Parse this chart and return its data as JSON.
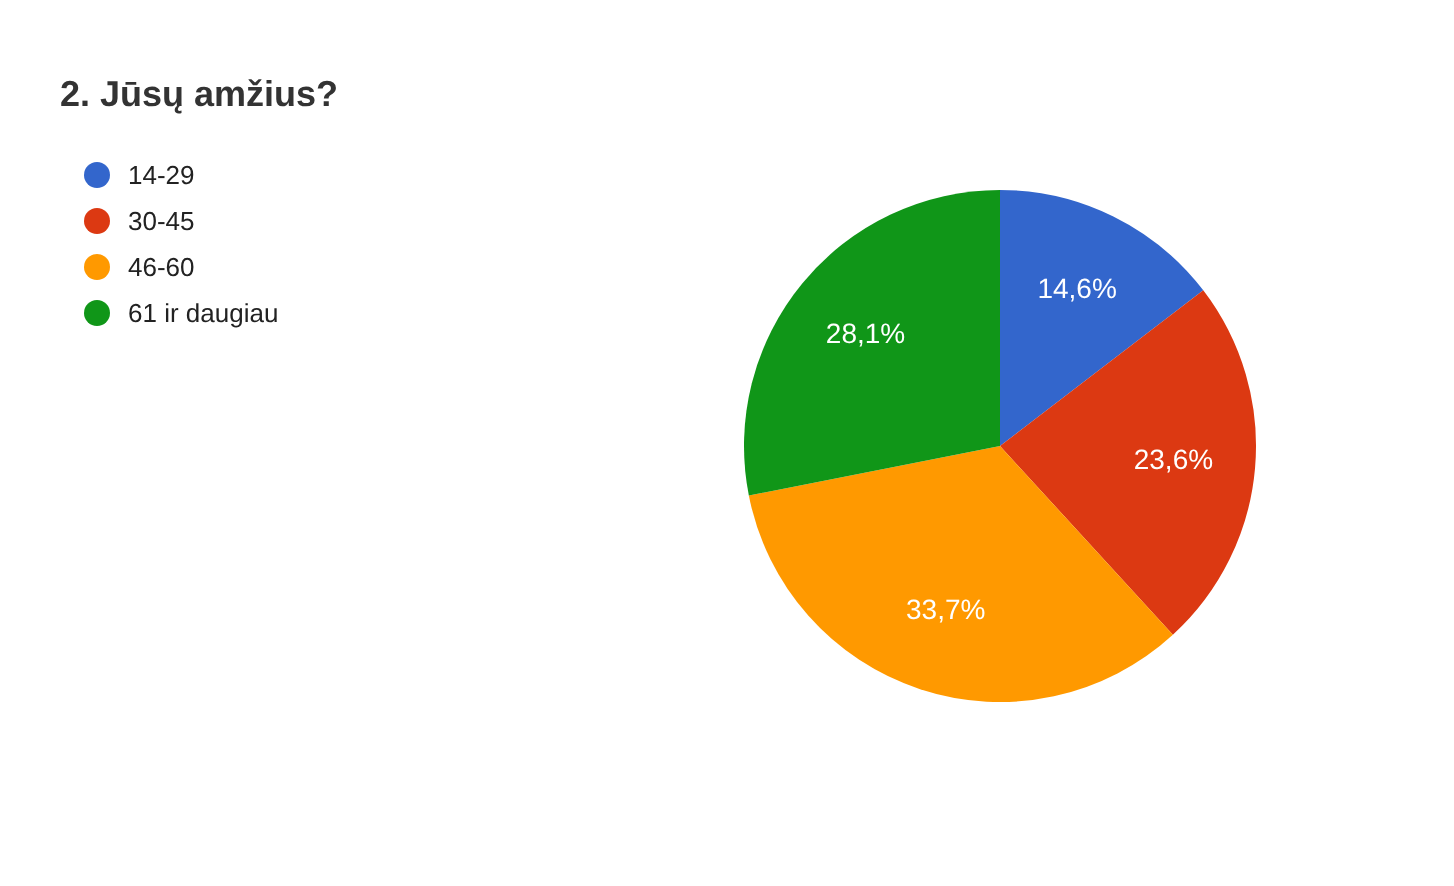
{
  "chart_data": {
    "type": "pie",
    "title": "2. Jūsų amžius?",
    "categories": [
      "14-29",
      "30-45",
      "46-60",
      "61 ir daugiau"
    ],
    "values": [
      14.6,
      23.6,
      33.7,
      28.1
    ],
    "colors": [
      "#3366cc",
      "#dc3912",
      "#ff9900",
      "#109618"
    ],
    "value_labels": [
      "14,6%",
      "23,6%",
      "33,7%",
      "28,1%"
    ],
    "legend": "top left"
  }
}
